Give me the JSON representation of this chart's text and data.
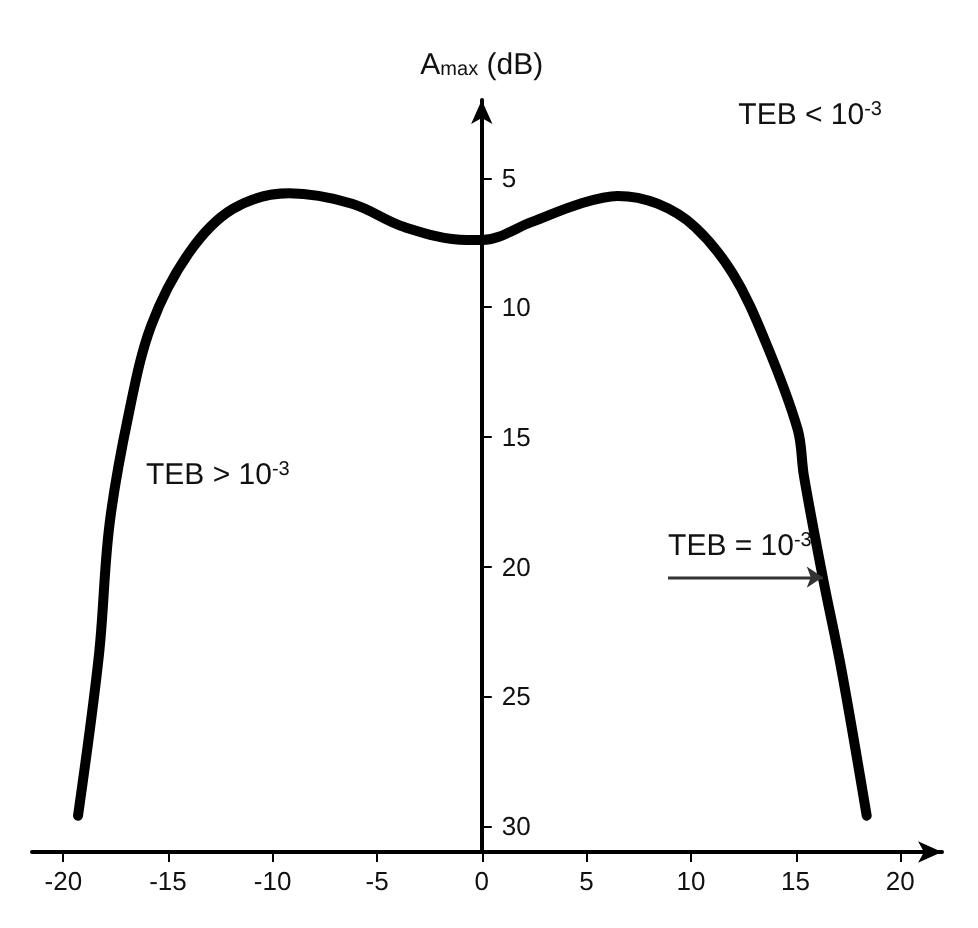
{
  "chart_data": {
    "type": "line",
    "ylabel": "A$_{max}$ (dB)",
    "x": [
      -19.3,
      -18.3,
      -17.8,
      -16.9,
      -15.8,
      -14,
      -11.9,
      -9.2,
      -6.2,
      -3.7,
      -0.7,
      0,
      2.4,
      4.7,
      6.5,
      8.4,
      10.2,
      12,
      13.5,
      15.1,
      15.4,
      16.3,
      17.2,
      18.4
    ],
    "series": [
      {
        "color": "#000000",
        "values": [
          29.6,
          23.4,
          18.4,
          14.2,
          10.7,
          7.9,
          6.2,
          5.6,
          6.0,
          6.9,
          7.4,
          7.4,
          6.7,
          6.0,
          5.7,
          6.0,
          6.9,
          8.7,
          11.2,
          14.7,
          16.5,
          20.4,
          24,
          29.6
        ]
      }
    ],
    "xlim": [
      -21.5,
      22
    ],
    "xticks": [
      -20,
      -15,
      -10,
      -5,
      0,
      5,
      10,
      15,
      20
    ],
    "ylim": [
      31,
      2
    ],
    "yticks": [
      5,
      10,
      15,
      20,
      25,
      30
    ],
    "annotations": [
      "TEB < 10$^{-3}$",
      "TEB > 10$^{-3}$",
      {
        "text": "TEB = 10$^{-3}$",
        "x": 16.3,
        "y": 20.4
      }
    ],
    "grid": false,
    "marker": "none"
  }
}
